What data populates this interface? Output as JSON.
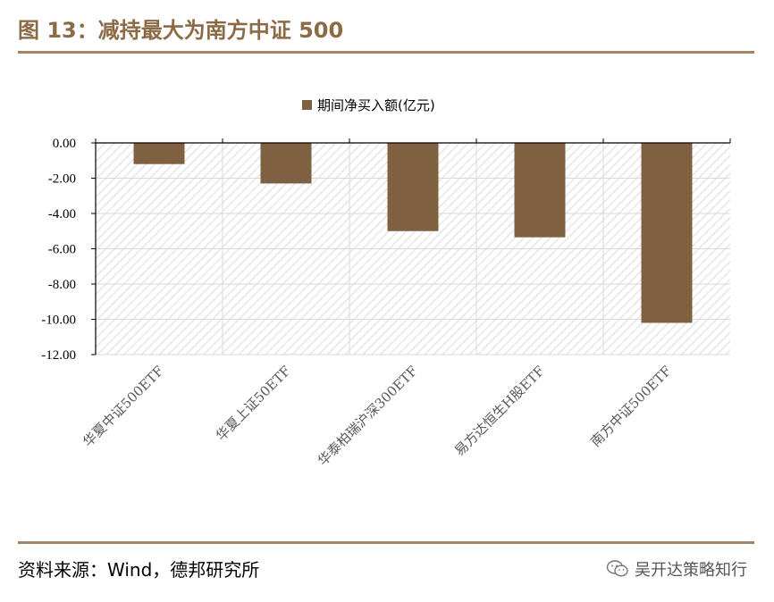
{
  "header": {
    "title": "图 13：减持最大为南方中证 500"
  },
  "footer": {
    "source": "资料来源：Wind，德邦研究所",
    "watermark": "吴开达策略知行"
  },
  "colors": {
    "bar": "#7f6040",
    "accent": "#a08463",
    "title": "#8b6b46",
    "gridline": "#d9d9d9"
  },
  "chart_data": {
    "type": "bar",
    "categories": [
      "华夏中证500ETF",
      "华夏上证50ETF",
      "华泰柏瑞沪深300ETF",
      "易方达恒生H股ETF",
      "南方中证500ETF"
    ],
    "series": [
      {
        "name": "期间净买入额(亿元)",
        "values": [
          -1.2,
          -2.3,
          -5.0,
          -5.35,
          -10.2
        ]
      }
    ],
    "yticks": [
      "0.00",
      "-2.00",
      "-4.00",
      "-6.00",
      "-8.00",
      "-10.00",
      "-12.00"
    ],
    "ylim": [
      -12,
      0
    ],
    "legend": "top-center",
    "grid": true
  }
}
